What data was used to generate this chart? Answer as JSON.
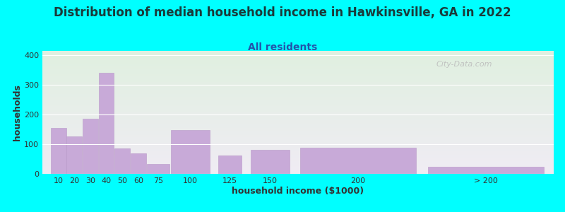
{
  "title": "Distribution of median household income in Hawkinsville, GA in 2022",
  "subtitle": "All residents",
  "xlabel": "household income ($1000)",
  "ylabel": "households",
  "background_color": "#00FFFF",
  "plot_bg_top": "#e0f0e0",
  "plot_bg_bottom": "#f0ecf4",
  "bar_color": "#c8aad8",
  "bar_edge_color": "#b899c8",
  "bar_labels": [
    "10",
    "20",
    "30",
    "40",
    "50",
    "60",
    "75",
    "100",
    "125",
    "150",
    "200",
    "> 200"
  ],
  "bar_values": [
    155,
    127,
    185,
    340,
    85,
    70,
    33,
    148,
    62,
    80,
    88,
    25
  ],
  "bar_widths": [
    10,
    10,
    10,
    10,
    10,
    10,
    15,
    25,
    15,
    25,
    75,
    75
  ],
  "bar_lefts": [
    5,
    15,
    25,
    35,
    45,
    55,
    65,
    80,
    110,
    130,
    160,
    240
  ],
  "xlim": [
    0,
    320
  ],
  "ylim": [
    0,
    415
  ],
  "yticks": [
    0,
    100,
    200,
    300,
    400
  ],
  "title_fontsize": 12,
  "subtitle_fontsize": 10,
  "axis_label_fontsize": 9,
  "tick_fontsize": 8,
  "title_color": "#1a3a3a",
  "subtitle_color": "#2255aa",
  "watermark_text": "City-Data.com",
  "watermark_color": "#bbbbbb"
}
